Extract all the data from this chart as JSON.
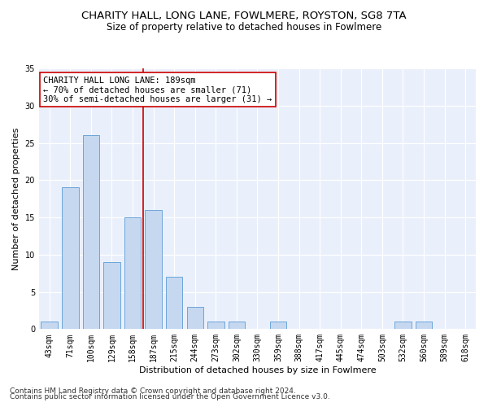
{
  "title": "CHARITY HALL, LONG LANE, FOWLMERE, ROYSTON, SG8 7TA",
  "subtitle": "Size of property relative to detached houses in Fowlmere",
  "xlabel": "Distribution of detached houses by size in Fowlmere",
  "ylabel": "Number of detached properties",
  "categories": [
    "43sqm",
    "71sqm",
    "100sqm",
    "129sqm",
    "158sqm",
    "187sqm",
    "215sqm",
    "244sqm",
    "273sqm",
    "302sqm",
    "330sqm",
    "359sqm",
    "388sqm",
    "417sqm",
    "445sqm",
    "474sqm",
    "503sqm",
    "532sqm",
    "560sqm",
    "589sqm",
    "618sqm"
  ],
  "values": [
    1,
    19,
    26,
    9,
    15,
    16,
    7,
    3,
    1,
    1,
    0,
    1,
    0,
    0,
    0,
    0,
    0,
    1,
    1,
    0,
    0
  ],
  "bar_color": "#c5d8f0",
  "bar_edgecolor": "#5b9bd5",
  "ref_line_x_label": "187sqm",
  "ref_line_color": "#cc0000",
  "ylim": [
    0,
    35
  ],
  "yticks": [
    0,
    5,
    10,
    15,
    20,
    25,
    30,
    35
  ],
  "annotation_title": "CHARITY HALL LONG LANE: 189sqm",
  "annotation_line1": "← 70% of detached houses are smaller (71)",
  "annotation_line2": "30% of semi-detached houses are larger (31) →",
  "footnote1": "Contains HM Land Registry data © Crown copyright and database right 2024.",
  "footnote2": "Contains public sector information licensed under the Open Government Licence v3.0.",
  "bg_color": "#ffffff",
  "plot_bg_color": "#eaf0fb",
  "grid_color": "#ffffff",
  "title_fontsize": 9.5,
  "subtitle_fontsize": 8.5,
  "axis_label_fontsize": 8,
  "tick_fontsize": 7,
  "annotation_fontsize": 7.5,
  "footnote_fontsize": 6.5
}
